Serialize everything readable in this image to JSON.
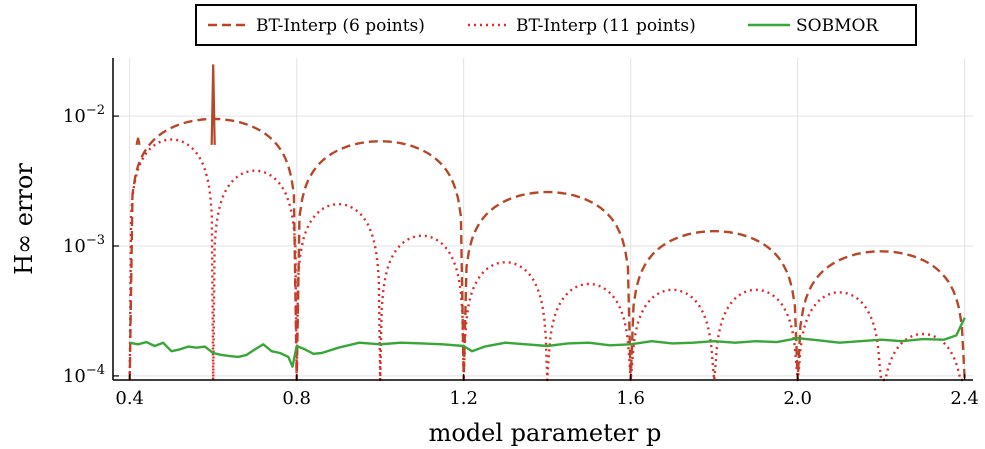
{
  "chart_data": {
    "type": "line",
    "title": "",
    "xlabel": "model parameter p",
    "ylabel": "H∞ error",
    "xscale": "linear",
    "yscale": "log",
    "xlim": [
      0.36,
      2.42
    ],
    "ylim": [
      9.3e-05,
      0.028
    ],
    "xticks": [
      0.4,
      0.8,
      1.2,
      1.6,
      2.0,
      2.4
    ],
    "xtick_labels": [
      "0.4",
      "0.8",
      "1.2",
      "1.6",
      "2.0",
      "2.4"
    ],
    "yticks": [
      0.0001,
      0.001,
      0.01
    ],
    "ytick_labels": [
      {
        "base": "10",
        "exp": "−4"
      },
      {
        "base": "10",
        "exp": "−3"
      },
      {
        "base": "10",
        "exp": "−2"
      }
    ],
    "grid": true,
    "legend_position": "top-center",
    "series": [
      {
        "name": "BT-Interp (6 points)",
        "color": "#b5482a",
        "style": "dashed",
        "lobes": [
          {
            "start": 0.4,
            "end": 0.8,
            "peak": 0.0095
          },
          {
            "start": 0.8,
            "end": 1.2,
            "peak": 0.0064
          },
          {
            "start": 1.2,
            "end": 1.6,
            "peak": 0.0026
          },
          {
            "start": 1.6,
            "end": 2.0,
            "peak": 0.0013
          },
          {
            "start": 2.0,
            "end": 2.4,
            "peak": 0.00091
          }
        ],
        "spikes": [
          {
            "x": 0.42,
            "y": 0.0068
          },
          {
            "x": 0.6,
            "y": 0.025
          }
        ]
      },
      {
        "name": "BT-Interp (11 points)",
        "color": "#e02b2b",
        "style": "dotted",
        "lobes": [
          {
            "start": 0.4,
            "end": 0.6,
            "peak": 0.0066
          },
          {
            "start": 0.6,
            "end": 0.8,
            "peak": 0.0038
          },
          {
            "start": 0.8,
            "end": 1.0,
            "peak": 0.0021
          },
          {
            "start": 1.0,
            "end": 1.2,
            "peak": 0.0012
          },
          {
            "start": 1.2,
            "end": 1.4,
            "peak": 0.00075
          },
          {
            "start": 1.4,
            "end": 1.6,
            "peak": 0.00051
          },
          {
            "start": 1.6,
            "end": 1.8,
            "peak": 0.00046
          },
          {
            "start": 1.8,
            "end": 2.0,
            "peak": 0.00046
          },
          {
            "start": 2.0,
            "end": 2.2,
            "peak": 0.00044
          },
          {
            "start": 2.2,
            "end": 2.4,
            "peak": 0.00021
          }
        ]
      },
      {
        "name": "SOBMOR",
        "color": "#3aa63a",
        "style": "solid",
        "x": [
          0.4,
          0.42,
          0.44,
          0.46,
          0.48,
          0.5,
          0.52,
          0.54,
          0.56,
          0.58,
          0.6,
          0.62,
          0.64,
          0.66,
          0.68,
          0.7,
          0.72,
          0.74,
          0.76,
          0.78,
          0.79,
          0.8,
          0.82,
          0.84,
          0.86,
          0.9,
          0.95,
          1.0,
          1.05,
          1.1,
          1.15,
          1.2,
          1.22,
          1.25,
          1.3,
          1.35,
          1.4,
          1.45,
          1.5,
          1.55,
          1.6,
          1.65,
          1.7,
          1.75,
          1.8,
          1.85,
          1.9,
          1.95,
          2.0,
          2.05,
          2.1,
          2.15,
          2.2,
          2.25,
          2.3,
          2.35,
          2.38,
          2.4
        ],
        "y": [
          0.00018,
          0.000175,
          0.000182,
          0.00017,
          0.00018,
          0.000155,
          0.00016,
          0.000168,
          0.000165,
          0.000168,
          0.00015,
          0.000145,
          0.000142,
          0.00014,
          0.000145,
          0.00016,
          0.000175,
          0.000155,
          0.00015,
          0.00014,
          0.000118,
          0.00017,
          0.00016,
          0.000148,
          0.00015,
          0.000165,
          0.00018,
          0.000175,
          0.00018,
          0.000178,
          0.000175,
          0.00017,
          0.000155,
          0.000168,
          0.00018,
          0.000175,
          0.00017,
          0.000178,
          0.00018,
          0.000172,
          0.000175,
          0.000185,
          0.000178,
          0.00018,
          0.000185,
          0.00018,
          0.000185,
          0.000182,
          0.000195,
          0.000188,
          0.00018,
          0.000185,
          0.00019,
          0.000185,
          0.000192,
          0.00019,
          0.000205,
          0.00028
        ]
      }
    ]
  }
}
